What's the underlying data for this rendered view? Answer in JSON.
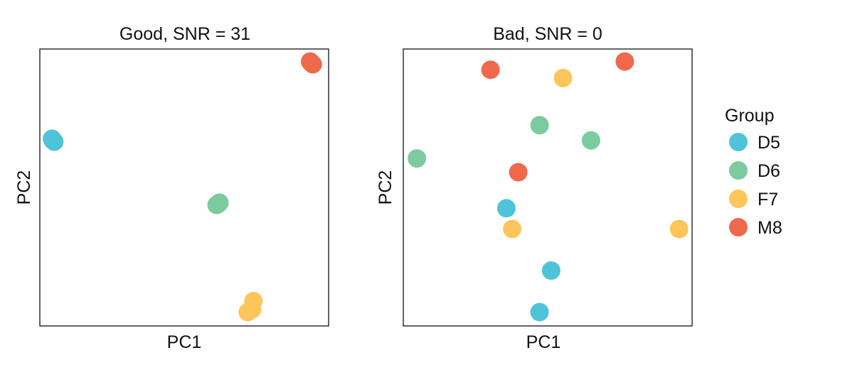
{
  "colors": {
    "D5": "#4FC3D9",
    "D6": "#7BCB9E",
    "F7": "#FEC55B",
    "M8": "#F0694A"
  },
  "legend": {
    "title": "Group",
    "items": [
      "D5",
      "D6",
      "F7",
      "M8"
    ]
  },
  "chart_data": [
    {
      "type": "scatter",
      "title": "Good, SNR = 31",
      "xlabel": "PC1",
      "ylabel": "PC2",
      "xlim": [
        0,
        1
      ],
      "ylim": [
        0,
        1
      ],
      "series": [
        {
          "name": "D5",
          "x": [
            0.045,
            0.05,
            0.042
          ],
          "y": [
            0.67,
            0.665,
            0.676
          ]
        },
        {
          "name": "D6",
          "x": [
            0.617,
            0.622,
            0.612
          ],
          "y": [
            0.44,
            0.445,
            0.437
          ]
        },
        {
          "name": "F7",
          "x": [
            0.735,
            0.72,
            0.74
          ],
          "y": [
            0.06,
            0.05,
            0.09
          ]
        },
        {
          "name": "M8",
          "x": [
            0.94,
            0.945,
            0.936
          ],
          "y": [
            0.95,
            0.945,
            0.955
          ]
        }
      ]
    },
    {
      "type": "scatter",
      "title": "Bad, SNR = 0",
      "xlabel": "PC1",
      "ylabel": "PC2",
      "xlim": [
        0,
        1
      ],
      "ylim": [
        0,
        1
      ],
      "series": [
        {
          "name": "D5",
          "x": [
            0.357,
            0.512,
            0.472
          ],
          "y": [
            0.425,
            0.2,
            0.05
          ]
        },
        {
          "name": "D6",
          "x": [
            0.047,
            0.472,
            0.65
          ],
          "y": [
            0.605,
            0.725,
            0.67
          ]
        },
        {
          "name": "F7",
          "x": [
            0.553,
            0.377,
            0.955
          ],
          "y": [
            0.895,
            0.35,
            0.35
          ]
        },
        {
          "name": "M8",
          "x": [
            0.302,
            0.398,
            0.767
          ],
          "y": [
            0.925,
            0.555,
            0.955
          ]
        }
      ]
    }
  ]
}
